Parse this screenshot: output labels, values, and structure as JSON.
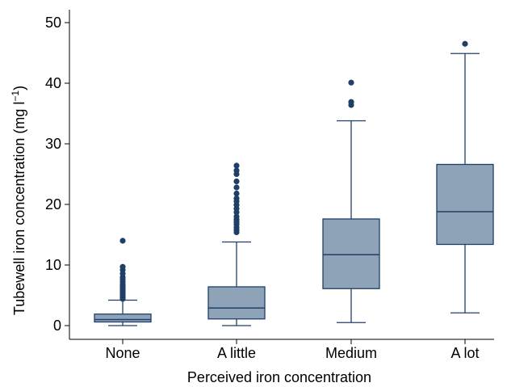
{
  "chart_data": {
    "type": "box",
    "title": "",
    "xlabel": "Perceived iron concentration",
    "ylabel": "Tubewell iron concentration (mg l",
    "ylabel_superscript": "−1",
    "ylabel_close": ")",
    "ylim": [
      0,
      50
    ],
    "yticks": [
      0,
      10,
      20,
      30,
      40,
      50
    ],
    "grid": false,
    "legend": "none",
    "colors": {
      "box_fill": "#8ea3b8",
      "box_stroke": "#1f3f66",
      "outlier": "#1f3f66"
    },
    "categories": [
      "None",
      "A little",
      "Medium",
      "A lot"
    ],
    "boxes": [
      {
        "category": "None",
        "whisker_low": 0,
        "q1": 0.6,
        "median": 1.0,
        "q3": 1.9,
        "whisker_high": 4.2,
        "outliers": [
          4.4,
          4.7,
          5.0,
          5.3,
          5.6,
          5.9,
          6.2,
          6.5,
          6.8,
          7.2,
          7.6,
          8.0,
          8.6,
          9.2,
          9.7,
          14.0
        ]
      },
      {
        "category": "A little",
        "whisker_low": 0,
        "q1": 1.1,
        "median": 2.9,
        "q3": 6.4,
        "whisker_high": 13.8,
        "outliers": [
          15.4,
          15.8,
          16.2,
          16.7,
          17.1,
          17.5,
          18.0,
          18.7,
          19.3,
          19.9,
          20.5,
          21.0,
          21.8,
          22.8,
          23.8,
          25.0,
          25.6,
          26.4
        ]
      },
      {
        "category": "Medium",
        "whisker_low": 0.5,
        "q1": 6.1,
        "median": 11.7,
        "q3": 17.6,
        "whisker_high": 33.8,
        "outliers": [
          36.4,
          36.9,
          40.1
        ]
      },
      {
        "category": "A lot",
        "whisker_low": 2.1,
        "q1": 13.4,
        "median": 18.8,
        "q3": 26.6,
        "whisker_high": 44.9,
        "outliers": [
          46.5
        ]
      }
    ]
  }
}
